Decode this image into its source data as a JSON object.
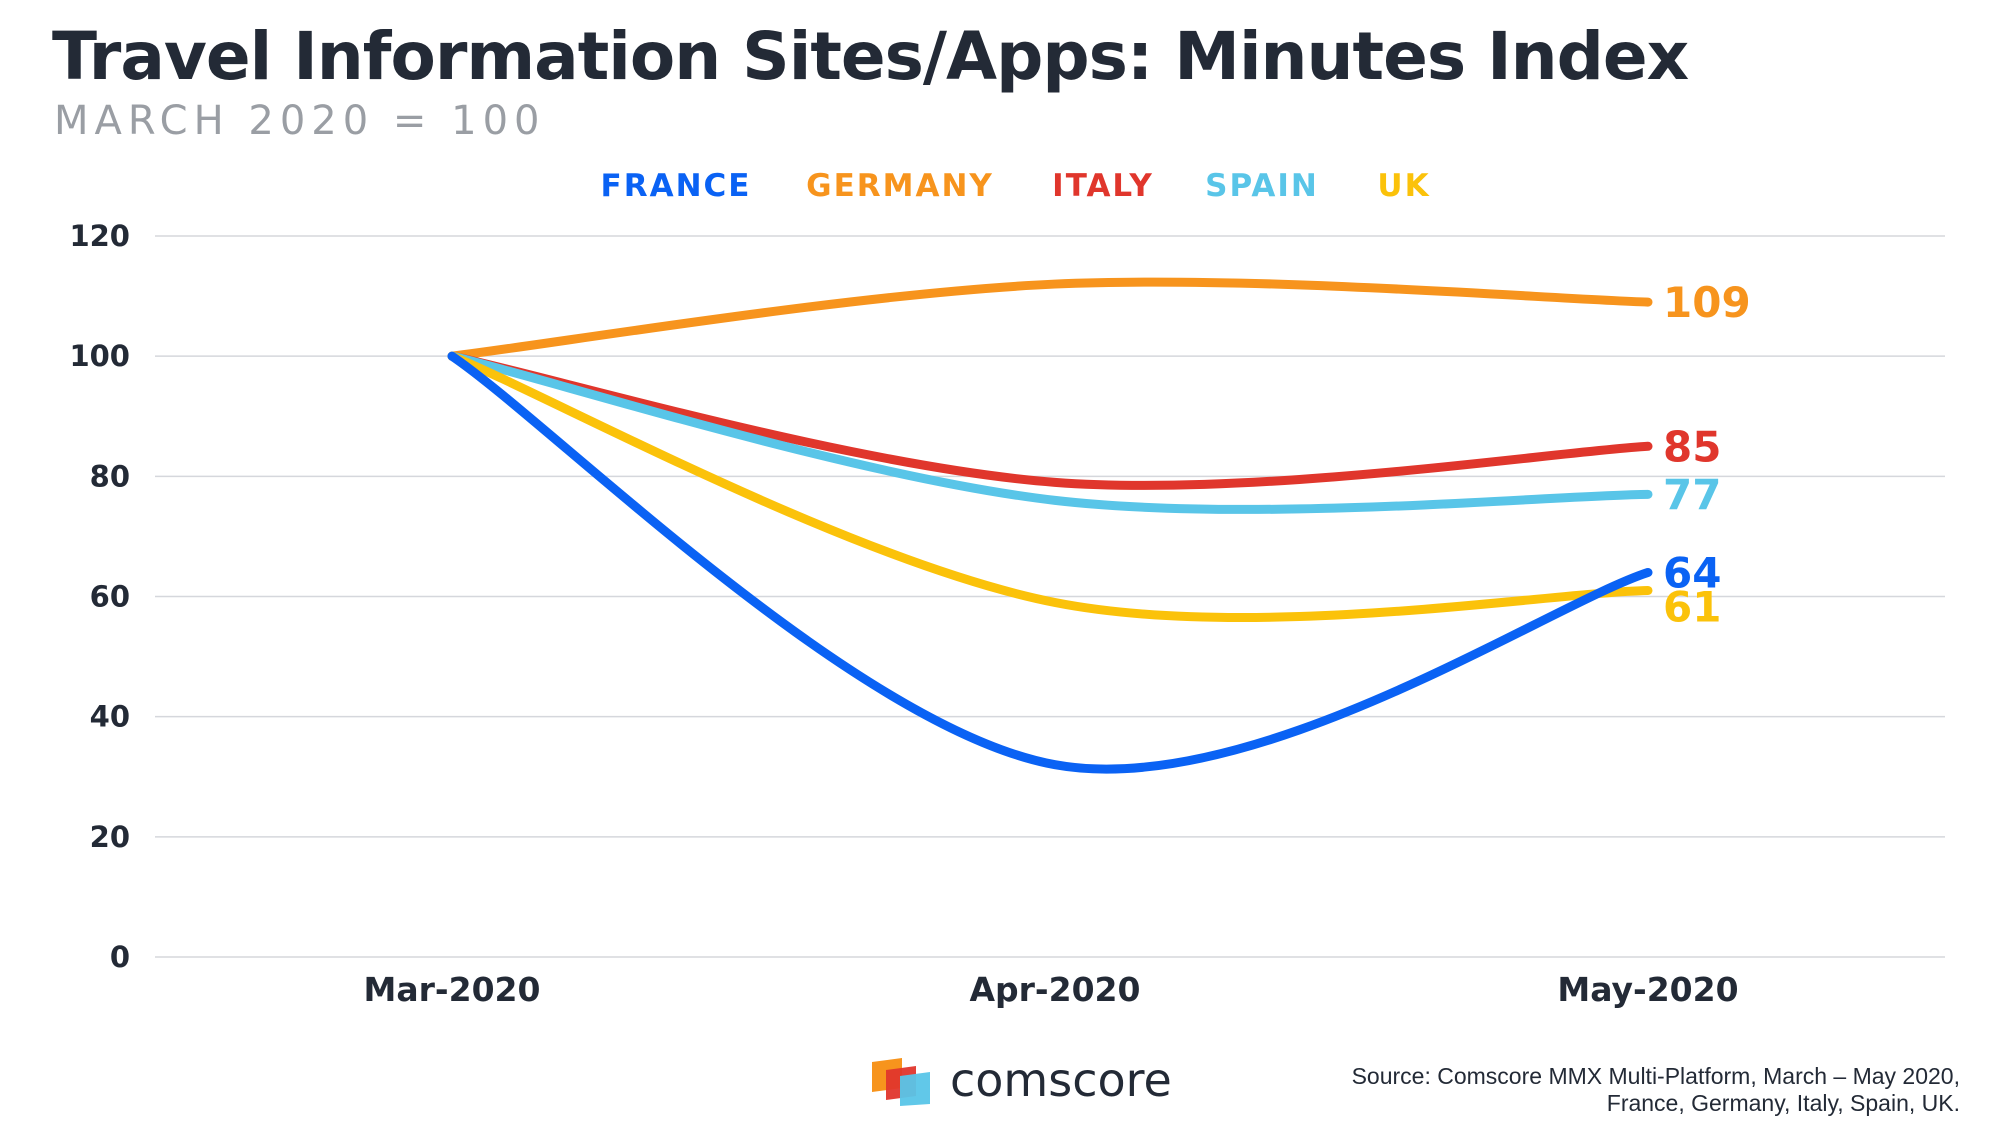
{
  "chart_data": {
    "type": "line",
    "title": "Travel Information Sites/Apps: Minutes Index",
    "subtitle": "MARCH 2020 = 100",
    "categories": [
      "Mar-2020",
      "Apr-2020",
      "May-2020"
    ],
    "ylim": [
      0,
      120
    ],
    "yticks": [
      0,
      20,
      40,
      60,
      80,
      100,
      120
    ],
    "grid": true,
    "legend_position": "top-center",
    "series": [
      {
        "name": "FRANCE",
        "color": "#0a62f4",
        "values": [
          100,
          32,
          64
        ],
        "end_label": "64"
      },
      {
        "name": "GERMANY",
        "color": "#f7941d",
        "values": [
          100,
          112,
          109
        ],
        "end_label": "109"
      },
      {
        "name": "ITALY",
        "color": "#e0362c",
        "values": [
          100,
          79,
          85
        ],
        "end_label": "85"
      },
      {
        "name": "SPAIN",
        "color": "#59c5e8",
        "values": [
          100,
          76,
          77
        ],
        "end_label": "77"
      },
      {
        "name": "UK",
        "color": "#fbc20a",
        "values": [
          100,
          59,
          61
        ],
        "end_label": "61"
      }
    ]
  },
  "footer": {
    "brand": "comscore",
    "source_line1": "Source: Comscore MMX Multi-Platform, March – May 2020,",
    "source_line2": "France, Germany, Italy, Spain, UK."
  }
}
